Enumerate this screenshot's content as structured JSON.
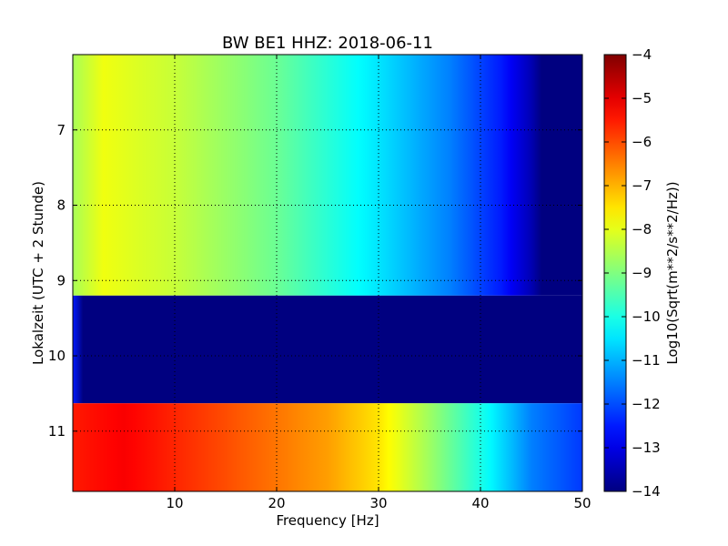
{
  "chart_data": {
    "type": "heatmap",
    "title": "BW BE1 HHZ: 2018-06-11",
    "xlabel": "Frequency [Hz]",
    "ylabel": "Lokalzeit (UTC + 2 Stunde)",
    "xlim": [
      0,
      50
    ],
    "ylim": [
      6.0,
      11.8
    ],
    "y_inverted": true,
    "x_ticks": [
      10,
      20,
      30,
      40,
      50
    ],
    "y_ticks": [
      7,
      8,
      9,
      10,
      11
    ],
    "grid": true,
    "colormap": "jet",
    "colorbar": {
      "label": "Log10(Sqrt(m**2/s**2/Hz))",
      "range": [
        -14,
        -4
      ],
      "ticks": [
        -14,
        -13,
        -12,
        -11,
        -10,
        -9,
        -8,
        -7,
        -6,
        -5,
        -4
      ]
    },
    "segments": [
      {
        "t_start": 6.0,
        "t_end": 9.2,
        "level_profile": [
          [
            0,
            -8.6
          ],
          [
            3,
            -7.9
          ],
          [
            10,
            -8.3
          ],
          [
            20,
            -9.2
          ],
          [
            30,
            -10.5
          ],
          [
            37,
            -11.5
          ],
          [
            42,
            -12.5
          ],
          [
            45,
            -13.5
          ],
          [
            46,
            -14.0
          ],
          [
            50,
            -14.0
          ]
        ]
      },
      {
        "t_start": 9.2,
        "t_end": 10.63,
        "level_profile": [
          [
            0,
            -12.5
          ],
          [
            1,
            -14.0
          ],
          [
            50,
            -14.0
          ]
        ]
      },
      {
        "t_start": 10.63,
        "t_end": 11.8,
        "level_profile": [
          [
            0,
            -5.5
          ],
          [
            5,
            -5.2
          ],
          [
            15,
            -6.0
          ],
          [
            25,
            -6.8
          ],
          [
            30,
            -7.5
          ],
          [
            35,
            -8.7
          ],
          [
            40,
            -10.0
          ],
          [
            45,
            -11.5
          ],
          [
            50,
            -12.2
          ]
        ]
      }
    ]
  }
}
